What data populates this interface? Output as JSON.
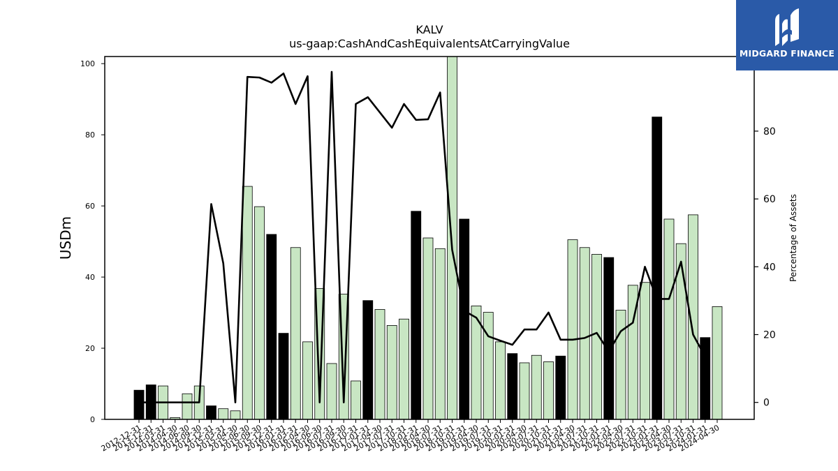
{
  "brand": {
    "name": "MIDGARD FINANCE"
  },
  "chart_data": {
    "type": "bar",
    "title": "KALV",
    "subtitle": "us-gaap:CashAndCashEquivalentsAtCarryingValue",
    "ylabel": "USDm",
    "ylabel_right": "Percentage of Assets",
    "ylim": [
      0,
      102
    ],
    "ylim_right": [
      -5,
      102
    ],
    "yticks": [
      0,
      20,
      40,
      60,
      80,
      100
    ],
    "yticks_right": [
      0,
      20,
      40,
      60,
      80
    ],
    "grid": false,
    "colors": {
      "annual": "#000000",
      "quarter": "#c8e6c3",
      "line": "#000000"
    },
    "categories": [
      "2012-12-31",
      "2013-12-31",
      "2014-03-31",
      "2014-04-30",
      "2014-06-30",
      "2014-09-30",
      "2014-12-31",
      "2015-03-31",
      "2015-04-30",
      "2015-06-30",
      "2015-09-30",
      "2015-12-31",
      "2016-01-31",
      "2016-03-31",
      "2016-04-30",
      "2016-06-30",
      "2016-07-31",
      "2016-09-30",
      "2016-10-31",
      "2017-01-31",
      "2017-04-30",
      "2017-07-31",
      "2017-10-31",
      "2018-01-31",
      "2018-04-30",
      "2018-07-31",
      "2018-10-31",
      "2019-01-31",
      "2019-04-30",
      "2019-07-31",
      "2019-10-31",
      "2020-01-31",
      "2020-04-30",
      "2020-07-31",
      "2020-10-31",
      "2021-01-31",
      "2021-04-30",
      "2021-07-31",
      "2021-10-31",
      "2022-01-31",
      "2022-04-30",
      "2022-07-31",
      "2022-10-31",
      "2023-01-31",
      "2023-04-30",
      "2023-07-31",
      "2023-10-31",
      "2024-01-31",
      "2024-04-30"
    ],
    "series": [
      {
        "kind": "bar",
        "values": [
          8.2,
          9.7,
          9.4,
          0.5,
          7.2,
          9.4,
          3.8,
          3.0,
          2.4,
          65.5,
          59.8,
          52.0,
          24.2,
          48.3,
          21.8,
          36.8,
          15.7,
          35.2,
          10.8,
          33.4,
          30.9,
          26.4,
          28.2,
          58.5,
          51.0,
          48.0,
          102.0,
          56.3,
          31.9,
          30.1,
          21.8,
          18.5,
          15.9,
          18.0,
          16.2,
          17.8,
          50.5,
          48.3,
          46.4,
          45.5,
          30.7,
          37.7,
          38.5,
          85.0,
          56.3,
          49.4,
          57.5,
          23.0,
          31.7
        ],
        "annual": [
          true,
          true,
          false,
          false,
          false,
          false,
          true,
          false,
          false,
          false,
          false,
          true,
          true,
          false,
          false,
          false,
          false,
          false,
          false,
          true,
          false,
          false,
          false,
          true,
          false,
          false,
          false,
          true,
          false,
          false,
          false,
          true,
          false,
          false,
          false,
          true,
          false,
          false,
          false,
          true,
          false,
          false,
          false,
          true,
          false,
          false,
          false,
          true,
          false
        ]
      },
      {
        "kind": "line",
        "axis": "right",
        "values": [
          0,
          0,
          0,
          0,
          0,
          0,
          58.5,
          41,
          0,
          96,
          95.8,
          94.3,
          97,
          88,
          96.2,
          0,
          97.5,
          0,
          88,
          90,
          85.5,
          81,
          88,
          83.3,
          83.5,
          91.4,
          45,
          27,
          25,
          19.5,
          18.2,
          17,
          21.5,
          21.5,
          26.5,
          18.5,
          18.5,
          19,
          20.5,
          15,
          21,
          23.5,
          40,
          30.5,
          30.5,
          41.5,
          20,
          13.5,
          null
        ]
      }
    ]
  }
}
